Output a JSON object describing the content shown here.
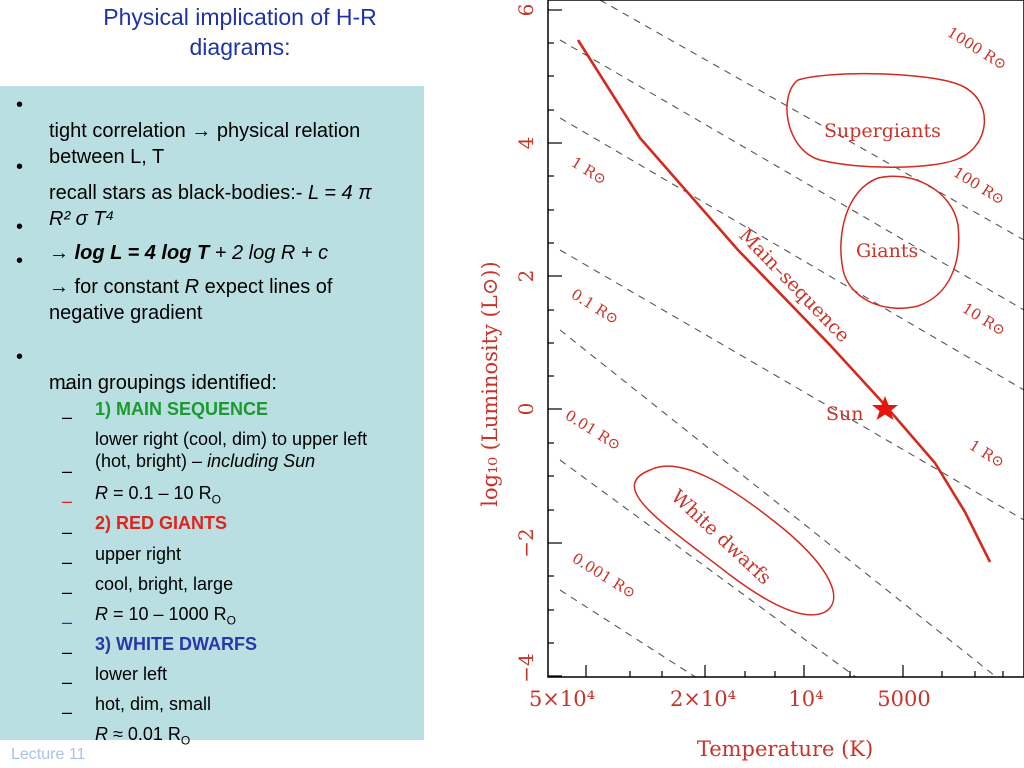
{
  "title_line1": "Physical implication of H-R",
  "title_line2": "diagrams:",
  "bullets": {
    "b1": "tight correlation → physical relation between L, T",
    "b2_pre": "recall stars as black-bodies:- ",
    "b2_math": "L = 4 π R² σ T⁴",
    "b3_bold": "→ log L = 4 log T",
    "b3_rest": " + 2 log R + c",
    "b4_pre": "→ for constant ",
    "b4_R": "R",
    "b4_rest": " expect lines of negative gradient",
    "b5": "main groupings identified:"
  },
  "subs": {
    "s1": "1) MAIN SEQUENCE",
    "s2_pre": "lower right (cool, dim) to upper left (hot, bright) – ",
    "s2_it": "including Sun",
    "s3_R": "R",
    "s3_rest": " = 0.1 – 10 R",
    "s3_sub": "O",
    "s4": "2) RED GIANTS",
    "s5": "upper right",
    "s6": "cool, bright, large",
    "s7_R": "R",
    "s7_rest": " = 10 – 1000 R",
    "s7_sub": "O",
    "s8": "3) WHITE DWARFS",
    "s9": "lower left",
    "s10": "hot, dim, small",
    "s11_R": "R",
    "s11_rest": " ≈ 0.01 R",
    "s11_sub": "O"
  },
  "bullet_symbol": "•",
  "dash_symbol": "–",
  "footer": "Lecture 11",
  "diagram": {
    "xlabel": "Temperature (K)",
    "ylabel": "log₁₀ (Luminosity (L⊙))",
    "xticks": [
      "5×10⁴",
      "2×10⁴",
      "10⁴",
      "5000"
    ],
    "yticks": [
      "6",
      "4",
      "2",
      "0",
      "−2",
      "−4"
    ],
    "region_labels": {
      "supergiants": "Supergiants",
      "giants": "Giants",
      "white_dwarfs": "White dwarfs",
      "main_sequence": "Main–sequence",
      "sun": "Sun"
    },
    "radius_labels": [
      "1000 R⊙",
      "100 R⊙",
      "10 R⊙",
      "1 R⊙",
      "1 R⊙",
      "0.1 R⊙",
      "0.01 R⊙",
      "0.001 R⊙"
    ],
    "colors": {
      "curve": "#d42a1e",
      "label": "#c8342a",
      "dashed": "#555555",
      "frame": "#000000"
    }
  }
}
